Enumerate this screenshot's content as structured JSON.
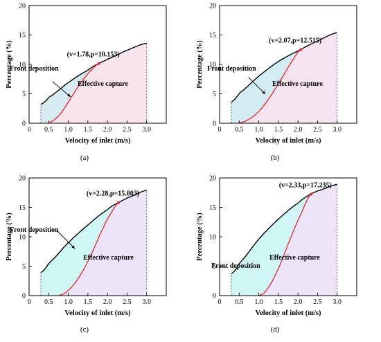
{
  "chart_data": [
    {
      "type": "area",
      "panel_caption": "(a)",
      "xlabel": "Velocity of inlet (m/s)",
      "ylabel": "Percentage (%)",
      "xlim": [
        0,
        3.5
      ],
      "ylim": [
        0,
        20
      ],
      "xticks": [
        "0",
        "0.5",
        "1.0",
        "1.5",
        "2.0",
        "2.5",
        "3.0"
      ],
      "yticks": [
        "0",
        "5",
        "10",
        "15",
        "20"
      ],
      "grid": false,
      "x_start": 0.3,
      "x_end": 3.0,
      "series": [
        {
          "color": "#000000",
          "x": [
            0.3,
            0.5,
            1.0,
            1.5,
            1.78,
            2.0,
            2.5,
            3.0
          ],
          "y": [
            3.2,
            4.4,
            6.9,
            9.0,
            10.153,
            10.9,
            12.4,
            13.6
          ]
        },
        {
          "color": "#e0262b",
          "x": [
            0.45,
            0.6,
            0.8,
            1.0,
            1.2,
            1.4,
            1.6,
            1.78
          ],
          "y": [
            0,
            0.4,
            1.6,
            3.6,
            5.7,
            7.6,
            9.1,
            10.153
          ]
        }
      ],
      "fills": {
        "front_deposition": "#d7ebf2",
        "effective_capture": "#f9e4ee"
      },
      "annotation": {
        "text": "(v=1.78,p=10.153)",
        "x": 1.78,
        "y": 10.153
      },
      "region_labels": [
        "Front deposition",
        "Effective capture"
      ]
    },
    {
      "type": "area",
      "panel_caption": "(b)",
      "xlabel": "Velocity of inlet (m/s)",
      "ylabel": "Percentage (%)",
      "xlim": [
        0,
        3.5
      ],
      "ylim": [
        0,
        20
      ],
      "xticks": [
        "0",
        "0.5",
        "1.0",
        "1.5",
        "2.0",
        "2.5",
        "3.0"
      ],
      "yticks": [
        "0",
        "5",
        "10",
        "15",
        "20"
      ],
      "grid": false,
      "x_start": 0.3,
      "x_end": 3.0,
      "series": [
        {
          "color": "#000000",
          "x": [
            0.3,
            0.5,
            1.0,
            1.5,
            2.07,
            2.5,
            3.0
          ],
          "y": [
            3.6,
            5.1,
            8.0,
            10.5,
            12.515,
            14.0,
            15.4
          ]
        },
        {
          "color": "#e0262b",
          "x": [
            0.45,
            0.7,
            1.0,
            1.3,
            1.6,
            1.9,
            2.07
          ],
          "y": [
            0,
            0.5,
            2.0,
            4.6,
            7.8,
            11.0,
            12.515
          ]
        }
      ],
      "fills": {
        "front_deposition": "#d3ecf1",
        "effective_capture": "#f5e4ef"
      },
      "annotation": {
        "text": "(v=2.07,p=12.515)",
        "x": 2.07,
        "y": 12.515
      },
      "region_labels": [
        "Front deposition",
        "Effective capture"
      ]
    },
    {
      "type": "area",
      "panel_caption": "(c)",
      "xlabel": "Velocity of inlet (m/s)",
      "ylabel": "Percentage (%)",
      "xlim": [
        0,
        3.5
      ],
      "ylim": [
        0,
        20
      ],
      "xticks": [
        "0",
        "0.5",
        "1.0",
        "1.5",
        "2.0",
        "2.5",
        "3.0"
      ],
      "yticks": [
        "0",
        "5",
        "10",
        "15",
        "20"
      ],
      "grid": false,
      "x_start": 0.3,
      "x_end": 3.0,
      "series": [
        {
          "color": "#000000",
          "x": [
            0.3,
            0.5,
            1.0,
            1.5,
            2.0,
            2.28,
            2.5,
            3.0
          ],
          "y": [
            3.9,
            5.5,
            9.0,
            12.0,
            14.6,
            15.803,
            16.6,
            17.9
          ]
        },
        {
          "color": "#e0262b",
          "x": [
            0.75,
            1.0,
            1.3,
            1.6,
            1.9,
            2.1,
            2.28
          ],
          "y": [
            0,
            0.9,
            3.4,
            7.2,
            11.6,
            14.1,
            15.803
          ]
        }
      ],
      "fills": {
        "front_deposition": "#cff5f5",
        "effective_capture": "#eee4f8"
      },
      "annotation": {
        "text": "(v=2.28,p=15.803)",
        "x": 2.28,
        "y": 15.803
      },
      "region_labels": [
        "Front deposition",
        "Effective capture"
      ]
    },
    {
      "type": "area",
      "panel_caption": "(d)",
      "xlabel": "Velocity of inlet (m/s)",
      "ylabel": "Percentage (%)",
      "xlim": [
        0,
        3.5
      ],
      "ylim": [
        0,
        20
      ],
      "xticks": [
        "0",
        "0.5",
        "1.0",
        "1.5",
        "2.0",
        "2.5",
        "3.0"
      ],
      "yticks": [
        "0",
        "5",
        "10",
        "15",
        "20"
      ],
      "grid": false,
      "x_start": 0.3,
      "x_end": 3.0,
      "series": [
        {
          "color": "#000000",
          "x": [
            0.3,
            0.5,
            1.0,
            1.5,
            2.0,
            2.33,
            2.5,
            3.0
          ],
          "y": [
            3.7,
            5.5,
            9.6,
            13.0,
            15.7,
            17.235,
            17.8,
            18.9
          ]
        },
        {
          "color": "#e0262b",
          "x": [
            1.0,
            1.2,
            1.5,
            1.8,
            2.1,
            2.33
          ],
          "y": [
            0,
            1.0,
            4.6,
            9.6,
            14.2,
            17.235
          ]
        }
      ],
      "fills": {
        "front_deposition": "#cff5f5",
        "effective_capture": "#eee4f8"
      },
      "annotation": {
        "text": "(v=2.33,p=17.235)",
        "x": 2.33,
        "y": 17.235
      },
      "region_labels": [
        "Front deposition",
        "Effective capture"
      ]
    }
  ]
}
